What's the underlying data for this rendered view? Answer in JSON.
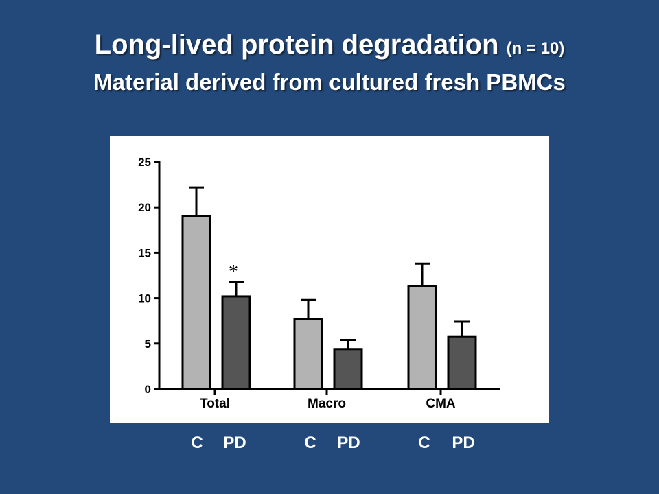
{
  "slide": {
    "title_main": "Long-lived protein degradation",
    "title_n": "(n = 10)",
    "subtitle": "Material derived from cultured fresh PBMCs"
  },
  "bottom_labels": [
    "C",
    "PD",
    "C",
    "PD",
    "C",
    "PD"
  ],
  "colors": {
    "background": "#23497a",
    "bar_C": "#b3b3b3",
    "bar_PD": "#555555",
    "axis": "#000000",
    "text": "#ffffff"
  },
  "chart_data": {
    "type": "bar",
    "categories": [
      "Total",
      "Macro",
      "CMA"
    ],
    "series": [
      {
        "values": [
          19.0,
          7.7,
          11.3
        ],
        "errors": [
          3.2,
          2.1,
          2.5
        ],
        "color": "#b3b3b3"
      },
      {
        "values": [
          10.2,
          4.4,
          5.8
        ],
        "errors": [
          1.6,
          1.0,
          1.6
        ],
        "color": "#555555"
      }
    ],
    "annotations": [
      {
        "text": "*",
        "category": "Total",
        "series_index": 1
      }
    ],
    "ylim": [
      0,
      25
    ],
    "yticks": [
      0,
      5,
      10,
      15,
      20,
      25
    ],
    "ytick_labels": [
      "0",
      "5",
      "10",
      "15",
      "20",
      "25"
    ],
    "xlabel": "",
    "ylabel": "",
    "grid": false
  }
}
